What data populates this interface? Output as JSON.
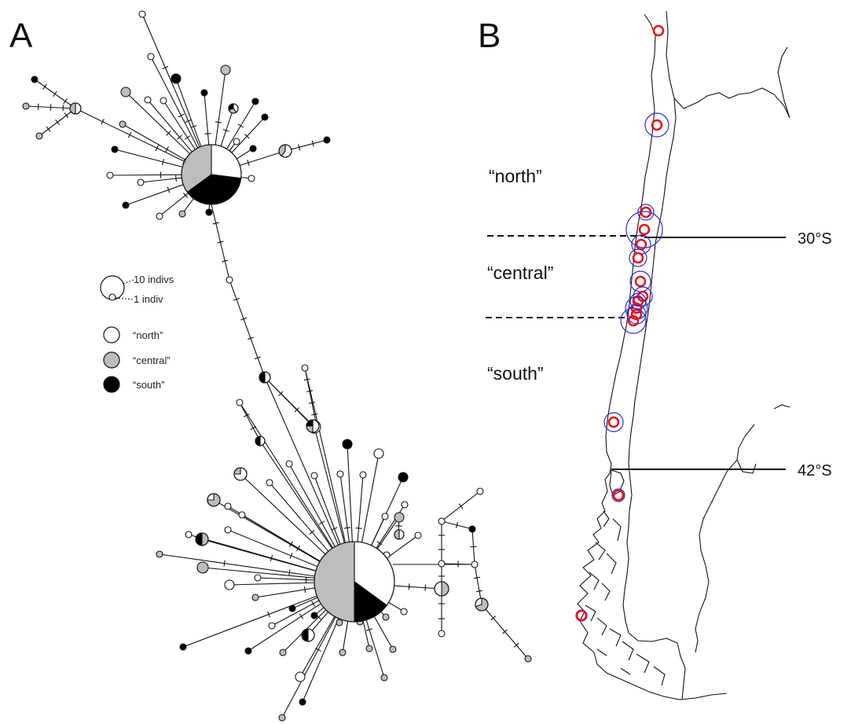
{
  "panels": {
    "a": "A",
    "b": "B"
  },
  "legend": {
    "size_large": "10 indivs",
    "size_small": "1 indiv",
    "groups": [
      {
        "key": "north",
        "label": "“north”",
        "color": "#ffffff"
      },
      {
        "key": "central",
        "label": "“central”",
        "color": "#bdbdbd"
      },
      {
        "key": "south",
        "label": "“south”",
        "color": "#000000"
      }
    ]
  },
  "map": {
    "regions": {
      "north": "“north”",
      "central": "“central”",
      "south": "“south”"
    },
    "latitudes": {
      "lat30": "30°S",
      "lat42": "42°S"
    },
    "site_color": "#e8141b",
    "abundance_color": "#2b2bd6"
  }
}
